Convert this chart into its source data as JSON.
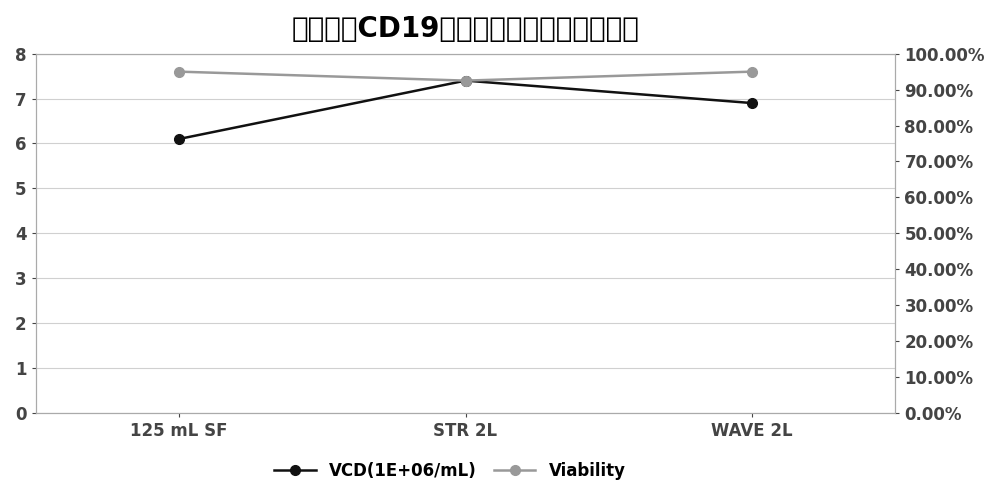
{
  "title": "不同规模CD19病毒包装收获液的细胞状态",
  "categories": [
    "125 mL SF",
    "STR 2L",
    "WAVE 2L"
  ],
  "vcd_values": [
    6.1,
    7.4,
    6.9
  ],
  "viability_values": [
    0.95,
    0.925,
    0.95
  ],
  "left_ylim": [
    0,
    8
  ],
  "left_yticks": [
    0,
    1,
    2,
    3,
    4,
    5,
    6,
    7,
    8
  ],
  "right_ylim": [
    0.0,
    1.0
  ],
  "right_yticks": [
    0.0,
    0.1,
    0.2,
    0.3,
    0.4,
    0.5,
    0.6,
    0.7,
    0.8,
    0.9,
    1.0
  ],
  "right_yticklabels": [
    "0.00%",
    "10.00%",
    "20.00%",
    "30.00%",
    "40.00%",
    "50.00%",
    "60.00%",
    "70.00%",
    "80.00%",
    "90.00%",
    "100.00%"
  ],
  "vcd_color": "#111111",
  "viability_color": "#999999",
  "vcd_label": "VCD(1E+06/mL)",
  "viability_label": "Viability",
  "title_fontsize": 20,
  "axis_fontsize": 12,
  "legend_fontsize": 12,
  "background_color": "#ffffff",
  "grid_color": "#d0d0d0",
  "spine_color": "#aaaaaa"
}
